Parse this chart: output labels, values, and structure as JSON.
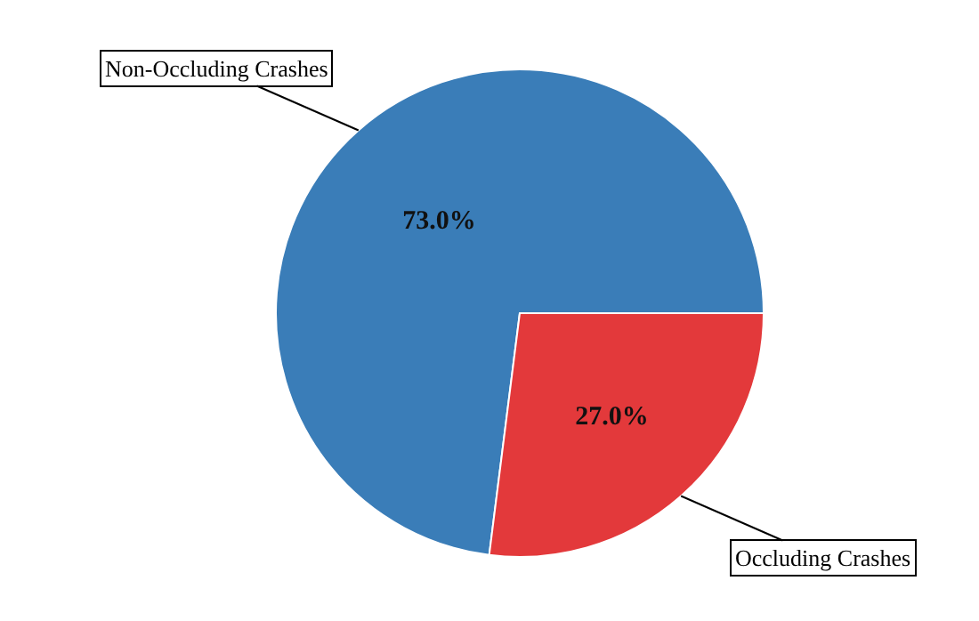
{
  "chart_data": {
    "type": "pie",
    "categories": [
      "Non-Occluding Crashes",
      "Occluding Crashes"
    ],
    "values": [
      73.0,
      27.0
    ],
    "colors": [
      "#3a7db8",
      "#e3393b"
    ],
    "value_labels": [
      "73.0%",
      "27.0%"
    ],
    "legend": false
  }
}
